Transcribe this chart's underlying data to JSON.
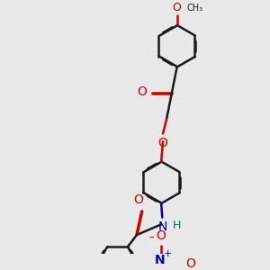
{
  "bg_color": "#e8e8e8",
  "bond_color": "#1a1a1a",
  "oxygen_color": "#cc0000",
  "nitrogen_color": "#0000bb",
  "teal_color": "#007070",
  "lw": 1.8,
  "dbo": 0.012,
  "fig_w": 3.0,
  "fig_h": 3.0,
  "dpi": 100,
  "xlim": [
    -2.8,
    2.8
  ],
  "ylim": [
    -3.5,
    3.5
  ]
}
